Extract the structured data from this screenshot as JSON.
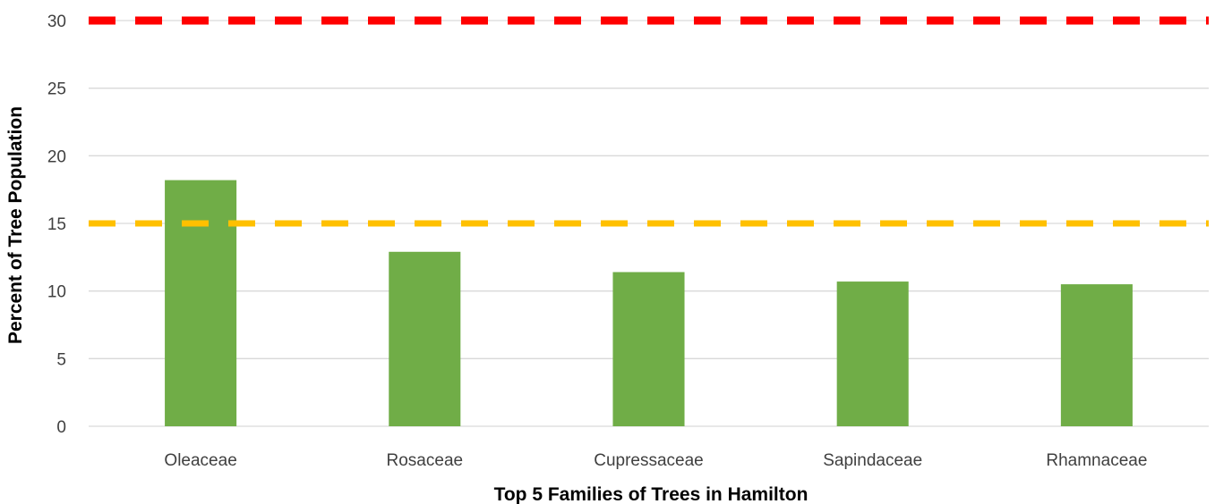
{
  "chart_data": {
    "type": "bar",
    "title": "",
    "xlabel": "Top 5 Families of Trees in Hamilton",
    "ylabel": "Percent of Tree Population",
    "categories": [
      "Oleaceae",
      "Rosaceae",
      "Cupressaceae",
      "Sapindaceae",
      "Rhamnaceae"
    ],
    "values": [
      18.2,
      12.9,
      11.4,
      10.7,
      10.5
    ],
    "ylim": [
      0,
      30
    ],
    "yticks": [
      0,
      5,
      10,
      15,
      20,
      25,
      30
    ],
    "ytick_labels": [
      "0",
      "5",
      "10",
      "15",
      "20",
      "25",
      "30"
    ],
    "grid": true,
    "legend": "none",
    "reference_lines": [
      {
        "value": 30,
        "style": "dashed",
        "color": "#ff0000"
      },
      {
        "value": 15,
        "style": "dashed",
        "color": "#ffc000"
      }
    ],
    "bar_color": "#70ad47",
    "grid_color": "#d9d9d9"
  }
}
